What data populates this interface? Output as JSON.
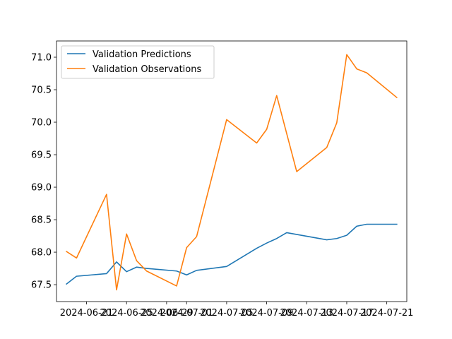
{
  "chart_data": {
    "type": "line",
    "title": "",
    "xlabel": "",
    "ylabel": "",
    "xlim": [
      "2024-06-18",
      "2024-07-23"
    ],
    "ylim": [
      67.24,
      71.25
    ],
    "x_ticks": [
      "2024-06-21",
      "2024-06-25",
      "2024-06-29",
      "2024-07-01",
      "2024-07-05",
      "2024-07-09",
      "2024-07-13",
      "2024-07-17",
      "2024-07-21"
    ],
    "x_tick_labels": [
      "2024-06-21",
      "2024-06-25",
      "2024-06-29",
      "2024-07-01",
      "2024-07-05",
      "2024-07-09",
      "2024-07-13",
      "2024-07-17",
      "2024-07-21"
    ],
    "y_ticks": [
      67.5,
      68.0,
      68.5,
      69.0,
      69.5,
      70.0,
      70.5,
      71.0
    ],
    "y_tick_labels": [
      "67.5",
      "68.0",
      "68.5",
      "69.0",
      "69.5",
      "70.0",
      "70.5",
      "71.0"
    ],
    "grid": false,
    "legend_position": "top-left",
    "series": [
      {
        "name": "Validation Predictions",
        "color": "#1f77b4",
        "x": [
          "2024-06-19",
          "2024-06-20",
          "2024-06-23",
          "2024-06-24",
          "2024-06-25",
          "2024-06-26",
          "2024-06-27",
          "2024-06-30",
          "2024-07-01",
          "2024-07-02",
          "2024-07-05",
          "2024-07-08",
          "2024-07-09",
          "2024-07-10",
          "2024-07-11",
          "2024-07-15",
          "2024-07-16",
          "2024-07-17",
          "2024-07-18",
          "2024-07-19",
          "2024-07-22"
        ],
        "y": [
          67.51,
          67.63,
          67.67,
          67.85,
          67.7,
          67.77,
          67.75,
          67.71,
          67.65,
          67.72,
          67.78,
          68.06,
          68.14,
          68.21,
          68.3,
          68.19,
          68.21,
          68.26,
          68.4,
          68.43,
          68.43
        ]
      },
      {
        "name": "Validation Observations",
        "color": "#ff7f0e",
        "x": [
          "2024-06-19",
          "2024-06-20",
          "2024-06-23",
          "2024-06-24",
          "2024-06-25",
          "2024-06-26",
          "2024-06-27",
          "2024-06-30",
          "2024-07-01",
          "2024-07-02",
          "2024-07-05",
          "2024-07-08",
          "2024-07-09",
          "2024-07-10",
          "2024-07-12",
          "2024-07-15",
          "2024-07-16",
          "2024-07-17",
          "2024-07-18",
          "2024-07-19",
          "2024-07-22"
        ],
        "y": [
          68.01,
          67.91,
          68.89,
          67.42,
          68.28,
          67.87,
          67.71,
          67.48,
          68.07,
          68.24,
          70.04,
          69.68,
          69.89,
          70.41,
          69.24,
          69.61,
          69.99,
          71.04,
          70.82,
          70.76,
          70.38
        ]
      }
    ]
  }
}
